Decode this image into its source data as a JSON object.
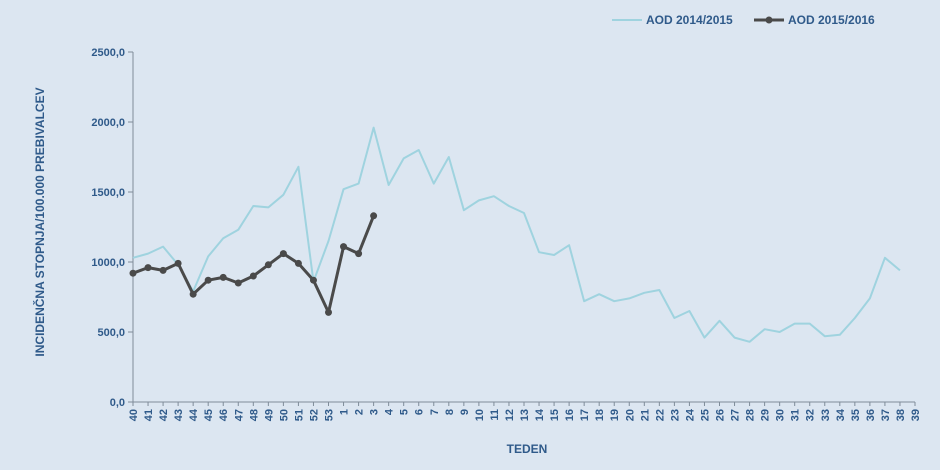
{
  "chart_data": {
    "type": "line",
    "title": "",
    "xlabel": "TEDEN",
    "ylabel": "INCIDENČNA STOPNJA/100.000 PREBIVALCEV",
    "ylim": [
      0,
      2500
    ],
    "y_ticks": [
      "0,0",
      "500,0",
      "1000,0",
      "1500,0",
      "2000,0",
      "2500,0"
    ],
    "categories": [
      "40",
      "41",
      "42",
      "43",
      "44",
      "45",
      "46",
      "47",
      "48",
      "49",
      "50",
      "51",
      "52",
      "53",
      "1",
      "2",
      "3",
      "4",
      "5",
      "6",
      "7",
      "8",
      "9",
      "10",
      "11",
      "12",
      "13",
      "14",
      "15",
      "16",
      "17",
      "18",
      "19",
      "20",
      "21",
      "22",
      "23",
      "24",
      "25",
      "26",
      "27",
      "28",
      "29",
      "30",
      "31",
      "32",
      "33",
      "34",
      "35",
      "36",
      "37",
      "38",
      "39"
    ],
    "grid": false,
    "legend_position": "top-right",
    "series": [
      {
        "name": "AOD 2014/2015",
        "color": "#9fd3df",
        "marker": false,
        "values": [
          1030,
          1060,
          1110,
          980,
          790,
          1040,
          1170,
          1230,
          1400,
          1390,
          1480,
          1680,
          860,
          1150,
          1520,
          1560,
          1960,
          1550,
          1740,
          1800,
          1560,
          1750,
          1370,
          1440,
          1470,
          1400,
          1350,
          1070,
          1050,
          1120,
          720,
          770,
          720,
          740,
          780,
          800,
          600,
          650,
          460,
          580,
          460,
          430,
          520,
          500,
          560,
          560,
          470,
          480,
          600,
          740,
          1030,
          940,
          null
        ]
      },
      {
        "name": "AOD 2015/2016",
        "color": "#4a4a4a",
        "marker": true,
        "values": [
          920,
          960,
          940,
          990,
          770,
          870,
          890,
          850,
          900,
          980,
          1060,
          990,
          870,
          640,
          1110,
          1060,
          1330,
          null,
          null,
          null,
          null,
          null,
          null,
          null,
          null,
          null,
          null,
          null,
          null,
          null,
          null,
          null,
          null,
          null,
          null,
          null,
          null,
          null,
          null,
          null,
          null,
          null,
          null,
          null,
          null,
          null,
          null,
          null,
          null,
          null,
          null,
          null,
          null
        ]
      }
    ]
  }
}
